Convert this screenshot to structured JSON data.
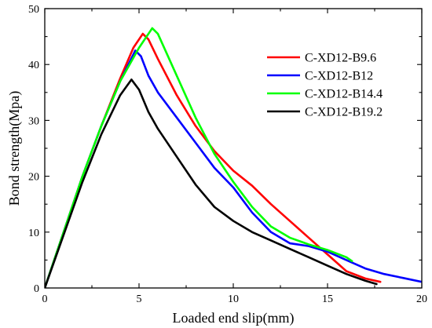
{
  "chart_data": {
    "type": "line",
    "title": "",
    "xlabel": "Loaded end slip(mm)",
    "ylabel": "Bond strength(Mpa)",
    "xlim": [
      0,
      20
    ],
    "ylim": [
      0,
      50
    ],
    "xticks": [
      0,
      5,
      10,
      15,
      20
    ],
    "yticks": [
      0,
      10,
      20,
      30,
      40,
      50
    ],
    "grid": false,
    "legend_position": "top-right",
    "series": [
      {
        "name": "C-XD12-B9.6",
        "color": "#ff0000",
        "points": [
          [
            0,
            0
          ],
          [
            1,
            10
          ],
          [
            2,
            20
          ],
          [
            3,
            29
          ],
          [
            4,
            37.5
          ],
          [
            4.7,
            43
          ],
          [
            5.2,
            45.5
          ],
          [
            5.5,
            44.5
          ],
          [
            6,
            41
          ],
          [
            7,
            34.5
          ],
          [
            8,
            29
          ],
          [
            9,
            24.5
          ],
          [
            10,
            21
          ],
          [
            11,
            18.3
          ],
          [
            12,
            15
          ],
          [
            13,
            12
          ],
          [
            14,
            9
          ],
          [
            15,
            6
          ],
          [
            16,
            3
          ],
          [
            17,
            1.7
          ],
          [
            17.8,
            1.1
          ]
        ]
      },
      {
        "name": "C-XD12-B12",
        "color": "#0000ff",
        "points": [
          [
            0,
            0
          ],
          [
            1,
            10
          ],
          [
            2,
            20
          ],
          [
            3,
            29
          ],
          [
            4,
            37
          ],
          [
            4.8,
            42.5
          ],
          [
            5.1,
            41.5
          ],
          [
            5.5,
            38
          ],
          [
            6,
            35
          ],
          [
            7,
            30.5
          ],
          [
            8,
            26
          ],
          [
            9,
            21.5
          ],
          [
            10,
            18
          ],
          [
            11,
            13.5
          ],
          [
            12,
            10
          ],
          [
            13,
            8
          ],
          [
            14,
            7.5
          ],
          [
            15,
            6.5
          ],
          [
            16,
            5
          ],
          [
            17,
            3.5
          ],
          [
            18,
            2.5
          ],
          [
            19,
            1.8
          ],
          [
            20,
            1.1
          ]
        ]
      },
      {
        "name": "C-XD12-B14.4",
        "color": "#00ff00",
        "points": [
          [
            0,
            0
          ],
          [
            1,
            10
          ],
          [
            2,
            20
          ],
          [
            3,
            29
          ],
          [
            4,
            37
          ],
          [
            5,
            43
          ],
          [
            5.7,
            46.5
          ],
          [
            6,
            45.5
          ],
          [
            7,
            38
          ],
          [
            8,
            30.5
          ],
          [
            9,
            24
          ],
          [
            10,
            19
          ],
          [
            11,
            14.5
          ],
          [
            12,
            11
          ],
          [
            13,
            9
          ],
          [
            14,
            7.8
          ],
          [
            15,
            6.8
          ],
          [
            16,
            5.5
          ],
          [
            16.3,
            4.8
          ]
        ]
      },
      {
        "name": "C-XD12-B19.2",
        "color": "#000000",
        "points": [
          [
            0,
            0
          ],
          [
            1,
            9.5
          ],
          [
            2,
            19
          ],
          [
            3,
            27.5
          ],
          [
            4,
            34.5
          ],
          [
            4.6,
            37.3
          ],
          [
            5,
            35.5
          ],
          [
            5.5,
            31.5
          ],
          [
            6,
            28.5
          ],
          [
            7,
            23.5
          ],
          [
            8,
            18.5
          ],
          [
            9,
            14.5
          ],
          [
            10,
            12
          ],
          [
            11,
            10
          ],
          [
            12,
            8.5
          ],
          [
            13,
            7
          ],
          [
            14,
            5.5
          ],
          [
            15,
            4
          ],
          [
            16,
            2.5
          ],
          [
            17,
            1.3
          ],
          [
            17.6,
            0.7
          ]
        ]
      }
    ]
  }
}
